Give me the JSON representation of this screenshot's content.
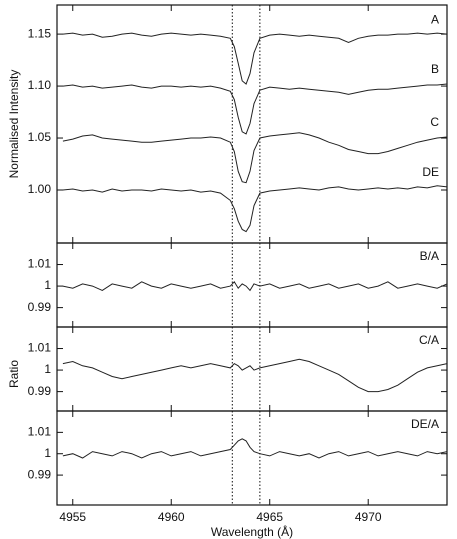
{
  "chart_data": [
    {
      "type": "line",
      "ylabel": "Normalised Intensity",
      "x": [
        4954.5,
        4955,
        4955.5,
        4956,
        4956.5,
        4957,
        4957.5,
        4958,
        4958.5,
        4959,
        4959.5,
        4960,
        4960.5,
        4961,
        4961.5,
        4962,
        4962.5,
        4963,
        4963.2,
        4963.4,
        4963.6,
        4963.8,
        4964,
        4964.2,
        4964.5,
        4965,
        4965.5,
        4966,
        4966.5,
        4967,
        4967.5,
        4968,
        4968.5,
        4969,
        4969.5,
        4970,
        4970.5,
        4971,
        4971.5,
        4972,
        4972.5,
        4973,
        4973.5,
        4974
      ],
      "series": [
        {
          "name": "A",
          "color": "#222222",
          "values": [
            1.15,
            1.151,
            1.149,
            1.15,
            1.147,
            1.148,
            1.15,
            1.151,
            1.149,
            1.148,
            1.15,
            1.151,
            1.15,
            1.149,
            1.15,
            1.149,
            1.148,
            1.146,
            1.138,
            1.122,
            1.105,
            1.102,
            1.112,
            1.132,
            1.146,
            1.149,
            1.15,
            1.149,
            1.148,
            1.149,
            1.148,
            1.147,
            1.146,
            1.142,
            1.146,
            1.148,
            1.149,
            1.149,
            1.15,
            1.15,
            1.151,
            1.15,
            1.151,
            1.15
          ]
        },
        {
          "name": "B",
          "color": "#222222",
          "values": [
            1.1,
            1.101,
            1.099,
            1.1,
            1.098,
            1.099,
            1.1,
            1.101,
            1.099,
            1.098,
            1.1,
            1.1,
            1.099,
            1.1,
            1.099,
            1.1,
            1.098,
            1.095,
            1.087,
            1.07,
            1.056,
            1.054,
            1.064,
            1.083,
            1.096,
            1.099,
            1.098,
            1.097,
            1.098,
            1.097,
            1.096,
            1.095,
            1.094,
            1.092,
            1.094,
            1.096,
            1.097,
            1.097,
            1.098,
            1.099,
            1.1,
            1.101,
            1.101,
            1.102
          ]
        },
        {
          "name": "C",
          "color": "#222222",
          "values": [
            1.047,
            1.049,
            1.052,
            1.053,
            1.05,
            1.049,
            1.048,
            1.047,
            1.046,
            1.046,
            1.047,
            1.048,
            1.049,
            1.05,
            1.05,
            1.051,
            1.05,
            1.046,
            1.037,
            1.018,
            1.008,
            1.007,
            1.018,
            1.038,
            1.05,
            1.052,
            1.053,
            1.054,
            1.055,
            1.053,
            1.05,
            1.046,
            1.043,
            1.039,
            1.037,
            1.035,
            1.035,
            1.037,
            1.04,
            1.043,
            1.046,
            1.048,
            1.05,
            1.051
          ]
        },
        {
          "name": "DE",
          "color": "#222222",
          "values": [
            1.0,
            1.001,
            0.999,
            1.0,
            0.998,
            1.001,
            0.999,
            1.0,
            1.0,
            0.999,
            1.001,
            1.0,
            0.999,
            1.0,
            0.998,
            0.999,
            0.997,
            0.99,
            0.982,
            0.97,
            0.962,
            0.96,
            0.966,
            0.985,
            0.997,
            0.999,
            1.0,
            1.001,
            1.002,
            1.001,
            1.0,
            1.002,
            1.003,
            1.001,
            1.0,
            1.001,
            1.002,
            1.001,
            1.002,
            1.001,
            1.003,
            1.002,
            1.004,
            1.003
          ]
        }
      ],
      "xlim": [
        4954.2,
        4974
      ],
      "ylim": [
        0.949,
        1.178
      ],
      "yticks": [
        {
          "value": 1,
          "label": "1.00"
        },
        1.05,
        {
          "value": 1.1,
          "label": "1.10"
        },
        1.15
      ],
      "vlines": [
        4963.1,
        4964.5
      ]
    },
    {
      "type": "line",
      "x": [
        4954.5,
        4955,
        4955.5,
        4956,
        4956.5,
        4957,
        4957.5,
        4958,
        4958.5,
        4959,
        4959.5,
        4960,
        4960.5,
        4961,
        4961.5,
        4962,
        4962.5,
        4963,
        4963.2,
        4963.4,
        4963.6,
        4963.8,
        4964,
        4964.2,
        4964.5,
        4965,
        4965.5,
        4966,
        4966.5,
        4967,
        4967.5,
        4968,
        4968.5,
        4969,
        4969.5,
        4970,
        4970.5,
        4971,
        4971.5,
        4972,
        4972.5,
        4973,
        4973.5,
        4974
      ],
      "series": [
        {
          "name": "B/A",
          "color": "#222222",
          "values": [
            1.0,
            0.999,
            1.001,
            1.0,
            0.998,
            1.001,
            1.0,
            0.999,
            1.002,
            1.0,
            0.999,
            1.001,
            1.0,
            0.999,
            1.0,
            1.001,
            0.999,
            1.0,
            1.002,
            0.999,
            1.001,
            1.0,
            0.998,
            1.001,
            1.0,
            1.001,
            0.999,
            1.0,
            1.001,
            0.999,
            1.0,
            1.001,
            0.999,
            1.0,
            1.001,
            0.999,
            1.0,
            1.002,
            0.999,
            1.0,
            1.001,
            1.0,
            0.999,
            1.001
          ]
        }
      ],
      "xlim": [
        4954.2,
        4974
      ],
      "ylim": [
        0.981,
        1.02
      ],
      "yticks": [
        0.99,
        1,
        1.01
      ],
      "vlines": [
        4963.1,
        4964.5
      ]
    },
    {
      "type": "line",
      "ylabel": "Ratio",
      "x": [
        4954.5,
        4955,
        4955.5,
        4956,
        4956.5,
        4957,
        4957.5,
        4958,
        4958.5,
        4959,
        4959.5,
        4960,
        4960.5,
        4961,
        4961.5,
        4962,
        4962.5,
        4963,
        4963.2,
        4963.4,
        4963.6,
        4963.8,
        4964,
        4964.2,
        4964.5,
        4965,
        4965.5,
        4966,
        4966.5,
        4967,
        4967.5,
        4968,
        4968.5,
        4969,
        4969.5,
        4970,
        4970.5,
        4971,
        4971.5,
        4972,
        4972.5,
        4973,
        4973.5,
        4974
      ],
      "series": [
        {
          "name": "C/A",
          "color": "#222222",
          "values": [
            1.003,
            1.004,
            1.002,
            1.001,
            0.999,
            0.997,
            0.996,
            0.997,
            0.998,
            0.999,
            1.0,
            1.001,
            1.002,
            1.001,
            1.002,
            1.003,
            1.002,
            1.001,
            1.003,
            1.002,
            1.0,
            1.001,
            1.002,
            1.0,
            1.001,
            1.002,
            1.003,
            1.004,
            1.005,
            1.004,
            1.002,
            1.0,
            0.998,
            0.995,
            0.992,
            0.99,
            0.99,
            0.991,
            0.993,
            0.996,
            0.999,
            1.001,
            1.002,
            1.003
          ]
        }
      ],
      "xlim": [
        4954.2,
        4974
      ],
      "ylim": [
        0.981,
        1.02
      ],
      "yticks": [
        0.99,
        1,
        1.01
      ],
      "vlines": [
        4963.1,
        4964.5
      ]
    },
    {
      "type": "line",
      "xlabel": "Wavelength (Å)",
      "x": [
        4954.5,
        4955,
        4955.5,
        4956,
        4956.5,
        4957,
        4957.5,
        4958,
        4958.5,
        4959,
        4959.5,
        4960,
        4960.5,
        4961,
        4961.5,
        4962,
        4962.5,
        4963,
        4963.2,
        4963.4,
        4963.6,
        4963.8,
        4964,
        4964.2,
        4964.5,
        4965,
        4965.5,
        4966,
        4966.5,
        4967,
        4967.5,
        4968,
        4968.5,
        4969,
        4969.5,
        4970,
        4970.5,
        4971,
        4971.5,
        4972,
        4972.5,
        4973,
        4973.5,
        4974
      ],
      "series": [
        {
          "name": "DE/A",
          "color": "#222222",
          "values": [
            0.999,
            1.0,
            0.998,
            1.001,
            1.0,
            0.999,
            1.001,
            1.0,
            0.998,
            1.0,
            1.001,
            0.999,
            1.0,
            1.001,
            0.999,
            1.0,
            1.001,
            1.002,
            1.004,
            1.006,
            1.007,
            1.006,
            1.003,
            1.001,
            1.0,
            0.999,
            1.001,
            1.0,
            0.999,
            1.0,
            0.998,
            1.0,
            1.001,
            0.999,
            1.0,
            1.001,
            0.999,
            1.0,
            1.001,
            1.0,
            0.999,
            1.001,
            1.0,
            1.001
          ]
        }
      ],
      "xlim": [
        4954.2,
        4974
      ],
      "ylim": [
        0.976,
        1.02
      ],
      "yticks": [
        0.99,
        1,
        1.01
      ],
      "xticks": [
        4955,
        4960,
        4965,
        4970
      ],
      "vlines": [
        4963.1,
        4964.5
      ]
    }
  ]
}
